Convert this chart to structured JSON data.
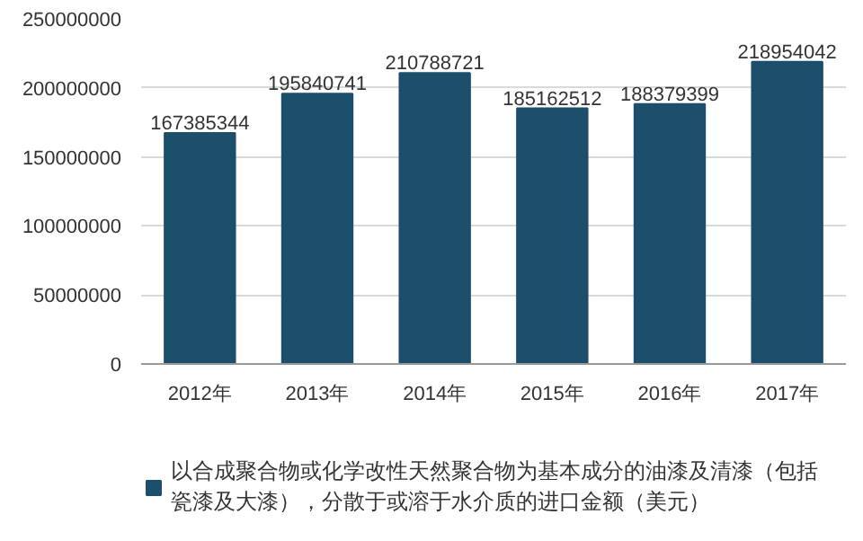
{
  "chart_data": {
    "type": "bar",
    "categories": [
      "2012年",
      "2013年",
      "2014年",
      "2015年",
      "2016年",
      "2017年"
    ],
    "series": [
      {
        "name": "以合成聚合物或化学改性天然聚合物为基本成分的油漆及清漆（包括瓷漆及大漆），分散于或溶于水介质的进口金额（美元）",
        "color": "#1b4f6b",
        "values": [
          167385344,
          195840741,
          210788721,
          185162512,
          188379399,
          218954042
        ]
      }
    ],
    "ylim": [
      0,
      250000000
    ],
    "yticks": [
      0,
      50000000,
      100000000,
      150000000,
      200000000,
      250000000
    ],
    "grid": "y",
    "legend": "bottom",
    "data_labels": true
  }
}
